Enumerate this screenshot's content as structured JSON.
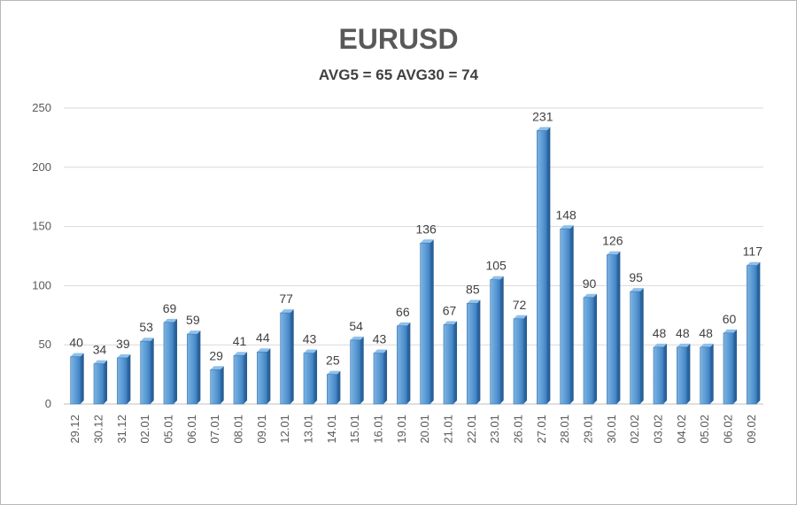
{
  "chart_data": {
    "type": "bar",
    "title": "EURUSD",
    "subtitle": "AVG5 = 65 AVG30 = 74",
    "xlabel": "",
    "ylabel": "",
    "ylim": [
      0,
      250
    ],
    "yticks": [
      0,
      50,
      100,
      150,
      200,
      250
    ],
    "grid": true,
    "legend": "none",
    "bar_color": "#5b9bd5",
    "categories": [
      "29.12",
      "30.12",
      "31.12",
      "02.01",
      "05.01",
      "06.01",
      "07.01",
      "08.01",
      "09.01",
      "12.01",
      "13.01",
      "14.01",
      "15.01",
      "16.01",
      "19.01",
      "20.01",
      "21.01",
      "22.01",
      "23.01",
      "26.01",
      "27.01",
      "28.01",
      "29.01",
      "30.01",
      "02.02",
      "03.02",
      "04.02",
      "05.02",
      "06.02",
      "09.02"
    ],
    "values": [
      40,
      34,
      39,
      53,
      69,
      59,
      29,
      41,
      44,
      77,
      43,
      25,
      54,
      43,
      66,
      136,
      67,
      85,
      105,
      72,
      231,
      148,
      90,
      126,
      95,
      48,
      48,
      48,
      60,
      117
    ]
  }
}
